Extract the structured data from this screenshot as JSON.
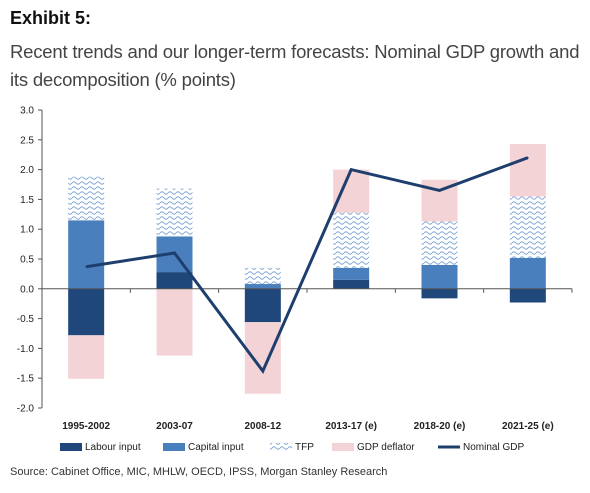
{
  "exhibit_label": "Exhibit 5:",
  "title": "Recent trends and our longer-term forecasts: Nominal GDP growth and its decomposition (% points)",
  "source": "Source: Cabinet Office, MIC, MHLW, OECD, IPSS, Morgan Stanley Research",
  "colors": {
    "labour": "#1f477a",
    "capital": "#4a7fbd",
    "tfp": "#7fa6d6",
    "deflator": "#f3d3d6",
    "nominal": "#1e3f6e"
  },
  "chart_data": {
    "type": "bar",
    "stacked": true,
    "categories": [
      "1995-2002",
      "2003-07",
      "2008-12",
      "2013-17 (e)",
      "2018-20 (e)",
      "2021-25 (e)"
    ],
    "series": [
      {
        "name": "Labour input",
        "kind": "bar",
        "pattern": "solid",
        "values": [
          -0.78,
          0.28,
          -0.56,
          0.15,
          -0.16,
          -0.23
        ]
      },
      {
        "name": "Capital input",
        "kind": "bar",
        "pattern": "solid",
        "values": [
          1.15,
          0.6,
          0.08,
          0.2,
          0.4,
          0.52
        ]
      },
      {
        "name": "TFP",
        "kind": "bar",
        "pattern": "wave",
        "values": [
          0.73,
          0.8,
          0.27,
          0.93,
          0.73,
          1.03
        ]
      },
      {
        "name": "GDP deflator",
        "kind": "bar",
        "pattern": "solid",
        "values": [
          -0.73,
          -1.12,
          -1.2,
          0.72,
          0.7,
          0.88
        ]
      },
      {
        "name": "Nominal GDP",
        "kind": "line",
        "values": [
          0.37,
          0.6,
          -1.38,
          2.0,
          1.65,
          2.2
        ]
      }
    ],
    "ylim": [
      -2.0,
      3.0
    ],
    "yticks": [
      "3.0",
      "2.5",
      "2.0",
      "1.5",
      "1.0",
      "0.5",
      "0.0",
      "-0.5",
      "-1.0",
      "-1.5",
      "-2.0"
    ],
    "xlabel": "",
    "ylabel": "",
    "grid": false,
    "legend_position": "bottom"
  }
}
